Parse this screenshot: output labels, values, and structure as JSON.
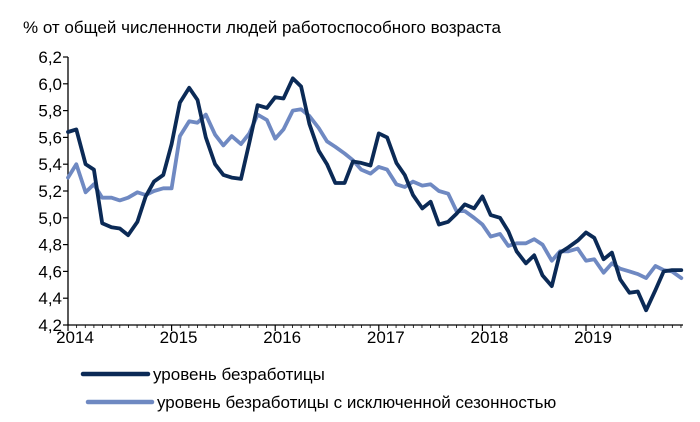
{
  "chart_data": {
    "type": "line",
    "ylabel": "% от общей численности людей работоспособного возраста",
    "ylim": [
      4.2,
      6.2
    ],
    "yticks": [
      "6,2",
      "6,0",
      "5,8",
      "5,6",
      "5,4",
      "5,2",
      "5,0",
      "4,8",
      "4,6",
      "4,4",
      "4,2"
    ],
    "xlim": [
      2014.0,
      2019.92
    ],
    "xticks": [
      "2014",
      "2015",
      "2016",
      "2017",
      "2018",
      "2019"
    ],
    "grid": false,
    "legend_position": "bottom",
    "series": [
      {
        "name": "уровень безработицы",
        "color": "#0b2a56",
        "x": [
          2014.0,
          2014.08,
          2014.17,
          2014.25,
          2014.33,
          2014.42,
          2014.5,
          2014.58,
          2014.67,
          2014.75,
          2014.83,
          2014.92,
          2015.0,
          2015.08,
          2015.17,
          2015.25,
          2015.33,
          2015.42,
          2015.5,
          2015.58,
          2015.67,
          2015.75,
          2015.83,
          2015.92,
          2016.0,
          2016.08,
          2016.17,
          2016.25,
          2016.33,
          2016.42,
          2016.5,
          2016.58,
          2016.67,
          2016.75,
          2016.83,
          2016.92,
          2017.0,
          2017.08,
          2017.17,
          2017.25,
          2017.33,
          2017.42,
          2017.5,
          2017.58,
          2017.67,
          2017.75,
          2017.83,
          2017.92,
          2018.0,
          2018.08,
          2018.17,
          2018.25,
          2018.33,
          2018.42,
          2018.5,
          2018.58,
          2018.67,
          2018.75,
          2018.83,
          2018.92,
          2019.0,
          2019.08,
          2019.17,
          2019.25,
          2019.33,
          2019.42,
          2019.5,
          2019.58,
          2019.67,
          2019.75,
          2019.83,
          2019.92
        ],
        "values": [
          5.64,
          5.66,
          5.4,
          5.36,
          4.96,
          4.93,
          4.92,
          4.87,
          4.97,
          5.16,
          5.27,
          5.32,
          5.55,
          5.86,
          5.97,
          5.88,
          5.6,
          5.4,
          5.32,
          5.3,
          5.29,
          5.56,
          5.84,
          5.82,
          5.9,
          5.89,
          6.04,
          5.98,
          5.7,
          5.5,
          5.4,
          5.26,
          5.26,
          5.42,
          5.41,
          5.39,
          5.63,
          5.6,
          5.41,
          5.32,
          5.17,
          5.07,
          5.12,
          4.95,
          4.97,
          5.03,
          5.1,
          5.07,
          5.16,
          5.02,
          5.0,
          4.9,
          4.75,
          4.66,
          4.72,
          4.57,
          4.49,
          4.74,
          4.78,
          4.83,
          4.89,
          4.85,
          4.69,
          4.74,
          4.54,
          4.44,
          4.45,
          4.31,
          4.46,
          4.6,
          4.61,
          4.61
        ]
      },
      {
        "name": "уровень безработицы с исключенной сезонностью",
        "color": "#6f89c2",
        "x": [
          2014.0,
          2014.08,
          2014.17,
          2014.25,
          2014.33,
          2014.42,
          2014.5,
          2014.58,
          2014.67,
          2014.75,
          2014.83,
          2014.92,
          2015.0,
          2015.08,
          2015.17,
          2015.25,
          2015.33,
          2015.42,
          2015.5,
          2015.58,
          2015.67,
          2015.75,
          2015.83,
          2015.92,
          2016.0,
          2016.08,
          2016.17,
          2016.25,
          2016.33,
          2016.42,
          2016.5,
          2016.58,
          2016.67,
          2016.75,
          2016.83,
          2016.92,
          2017.0,
          2017.08,
          2017.17,
          2017.25,
          2017.33,
          2017.42,
          2017.5,
          2017.58,
          2017.67,
          2017.75,
          2017.83,
          2017.92,
          2018.0,
          2018.08,
          2018.17,
          2018.25,
          2018.33,
          2018.42,
          2018.5,
          2018.58,
          2018.67,
          2018.75,
          2018.83,
          2018.92,
          2019.0,
          2019.08,
          2019.17,
          2019.25,
          2019.33,
          2019.42,
          2019.5,
          2019.58,
          2019.67,
          2019.75,
          2019.83,
          2019.92
        ],
        "values": [
          5.3,
          5.4,
          5.19,
          5.25,
          5.15,
          5.15,
          5.13,
          5.15,
          5.19,
          5.17,
          5.2,
          5.22,
          5.22,
          5.61,
          5.72,
          5.71,
          5.77,
          5.62,
          5.54,
          5.61,
          5.55,
          5.63,
          5.77,
          5.73,
          5.59,
          5.66,
          5.8,
          5.81,
          5.76,
          5.67,
          5.57,
          5.53,
          5.48,
          5.43,
          5.36,
          5.33,
          5.38,
          5.36,
          5.25,
          5.23,
          5.27,
          5.24,
          5.25,
          5.2,
          5.18,
          5.05,
          5.05,
          5.0,
          4.95,
          4.86,
          4.88,
          4.79,
          4.81,
          4.81,
          4.84,
          4.8,
          4.68,
          4.75,
          4.75,
          4.77,
          4.68,
          4.69,
          4.59,
          4.66,
          4.62,
          4.6,
          4.58,
          4.55,
          4.64,
          4.61,
          4.6,
          4.55
        ]
      }
    ]
  }
}
